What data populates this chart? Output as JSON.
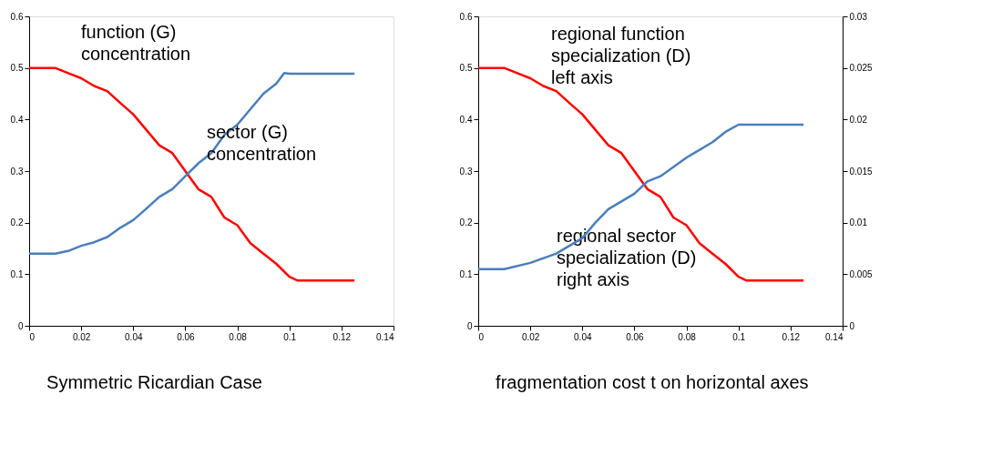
{
  "chart_data": [
    {
      "type": "line",
      "xlim": [
        0,
        0.14
      ],
      "xticks": [
        0,
        0.02,
        0.04,
        0.06,
        0.08,
        0.1,
        0.12,
        0.14
      ],
      "ylim": [
        0,
        0.6
      ],
      "yticks": [
        0,
        0.1,
        0.2,
        0.3,
        0.4,
        0.5,
        0.6
      ],
      "grid": false,
      "marker": "none",
      "line_style": "solid",
      "annotations": [
        "function (G)\nconcentration",
        "sector (G)\nconcentration",
        "Symmetric Ricardian Case"
      ],
      "series": [
        {
          "color": "#ff0000",
          "x": [
            0,
            0.01,
            0.015,
            0.02,
            0.025,
            0.03,
            0.035,
            0.04,
            0.045,
            0.05,
            0.055,
            0.06,
            0.065,
            0.07,
            0.075,
            0.08,
            0.085,
            0.09,
            0.095,
            0.1,
            0.103,
            0.125
          ],
          "values": [
            0.5,
            0.5,
            0.49,
            0.48,
            0.465,
            0.455,
            0.432,
            0.41,
            0.38,
            0.35,
            0.335,
            0.3,
            0.265,
            0.25,
            0.21,
            0.195,
            0.16,
            0.14,
            0.12,
            0.095,
            0.088,
            0.088
          ]
        },
        {
          "color": "#4a7ebb",
          "x": [
            0,
            0.01,
            0.015,
            0.02,
            0.025,
            0.03,
            0.035,
            0.04,
            0.045,
            0.05,
            0.055,
            0.06,
            0.065,
            0.07,
            0.075,
            0.08,
            0.085,
            0.09,
            0.095,
            0.098,
            0.1,
            0.125
          ],
          "values": [
            0.14,
            0.14,
            0.145,
            0.155,
            0.162,
            0.172,
            0.19,
            0.205,
            0.227,
            0.25,
            0.265,
            0.29,
            0.315,
            0.335,
            0.37,
            0.39,
            0.42,
            0.45,
            0.47,
            0.49,
            0.489,
            0.489
          ]
        }
      ]
    },
    {
      "type": "line",
      "xlim": [
        0,
        0.14
      ],
      "xticks": [
        0,
        0.02,
        0.04,
        0.06,
        0.08,
        0.1,
        0.12,
        0.14
      ],
      "ylim": [
        0,
        0.6
      ],
      "yticks": [
        0,
        0.1,
        0.2,
        0.3,
        0.4,
        0.5,
        0.6
      ],
      "y2lim": [
        0,
        0.03
      ],
      "y2ticks": [
        0,
        0.005,
        0.01,
        0.015,
        0.02,
        0.025,
        0.03
      ],
      "grid": false,
      "marker": "none",
      "line_style": "solid",
      "annotations": [
        "regional function\nspecialization (D)\nleft axis",
        "regional sector\nspecialization (D)\nright axis",
        "fragmentation cost t on horizontal axes"
      ],
      "series": [
        {
          "color": "#ff0000",
          "x": [
            0,
            0.01,
            0.015,
            0.02,
            0.025,
            0.03,
            0.035,
            0.04,
            0.045,
            0.05,
            0.055,
            0.06,
            0.065,
            0.07,
            0.075,
            0.08,
            0.085,
            0.09,
            0.095,
            0.1,
            0.103,
            0.125
          ],
          "values": [
            0.5,
            0.5,
            0.49,
            0.48,
            0.465,
            0.455,
            0.432,
            0.41,
            0.38,
            0.35,
            0.335,
            0.3,
            0.265,
            0.25,
            0.21,
            0.195,
            0.16,
            0.14,
            0.12,
            0.095,
            0.088,
            0.088
          ]
        },
        {
          "color": "#4a7ebb",
          "axis": "y2",
          "x": [
            0,
            0.01,
            0.02,
            0.03,
            0.04,
            0.045,
            0.05,
            0.06,
            0.065,
            0.07,
            0.08,
            0.09,
            0.095,
            0.1,
            0.125
          ],
          "values": [
            0.0055,
            0.0055,
            0.0061,
            0.007,
            0.0085,
            0.01,
            0.0113,
            0.0128,
            0.014,
            0.0145,
            0.0163,
            0.0178,
            0.0188,
            0.0195,
            0.0195
          ]
        }
      ]
    }
  ]
}
